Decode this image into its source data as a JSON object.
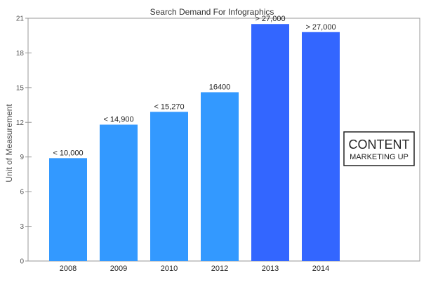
{
  "chart_data": {
    "type": "bar",
    "title": "Search Demand For Infographics",
    "xlabel": "",
    "ylabel": "Unit of Measurement",
    "categories": [
      "2008",
      "2009",
      "2010",
      "2012",
      "2013",
      "2014"
    ],
    "values": [
      8.9,
      11.8,
      12.9,
      14.6,
      20.5,
      19.8
    ],
    "data_labels": [
      "< 10,000",
      "< 14,900",
      "< 15,270",
      "16400",
      "> 27,000",
      "> 27,000"
    ],
    "bar_colors": [
      "#3399ff",
      "#3399ff",
      "#3399ff",
      "#3399ff",
      "#3366ff",
      "#3366ff"
    ],
    "ylim": [
      0,
      21
    ],
    "yticks": [
      0,
      3,
      6,
      9,
      12,
      15,
      18,
      21
    ],
    "grid": false,
    "legend": "none"
  },
  "annotation": {
    "line1": "CONTENT",
    "line2": "MARKETING UP"
  }
}
